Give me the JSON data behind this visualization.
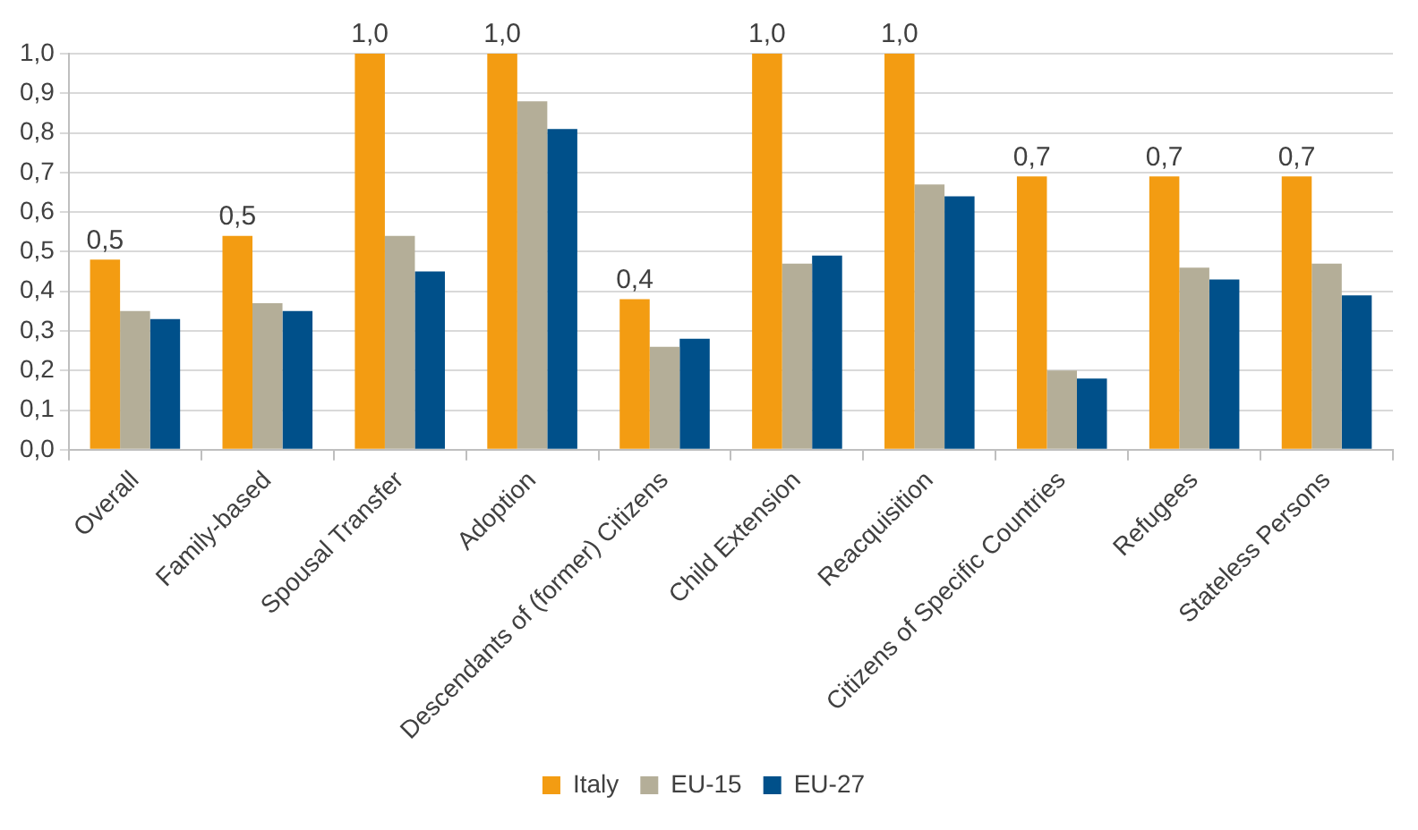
{
  "chart_data": {
    "type": "bar",
    "categories": [
      "Overall",
      "Family-based",
      "Spousal Transfer",
      "Adoption",
      "Descendants of (former) Citizens",
      "Child Extension",
      "Reacquisition",
      "Citizens of Specific Countries",
      "Refugees",
      "Stateless Persons"
    ],
    "series": [
      {
        "name": "Italy",
        "color": "#f39c12",
        "values": [
          0.48,
          0.54,
          1.0,
          1.0,
          0.38,
          1.0,
          1.0,
          0.69,
          0.69,
          0.69
        ],
        "value_labels": [
          "0,5",
          "0,5",
          "1,0",
          "1,0",
          "0,4",
          "1,0",
          "1,0",
          "0,7",
          "0,7",
          "0,7"
        ]
      },
      {
        "name": "EU-15",
        "color": "#b4ae98",
        "values": [
          0.35,
          0.37,
          0.54,
          0.88,
          0.26,
          0.47,
          0.67,
          0.2,
          0.46,
          0.47
        ]
      },
      {
        "name": "EU-27",
        "color": "#00508a",
        "values": [
          0.33,
          0.35,
          0.45,
          0.81,
          0.28,
          0.49,
          0.64,
          0.18,
          0.43,
          0.39
        ]
      }
    ],
    "ylim": [
      0,
      1
    ],
    "yticks": [
      {
        "value": 0,
        "label": "0,0"
      },
      {
        "value": 0.1,
        "label": "0,1"
      },
      {
        "value": 0.2,
        "label": "0,2"
      },
      {
        "value": 0.3,
        "label": "0,3"
      },
      {
        "value": 0.4,
        "label": "0,4"
      },
      {
        "value": 0.5,
        "label": "0,5"
      },
      {
        "value": 0.6,
        "label": "0,6"
      },
      {
        "value": 0.7,
        "label": "0,7"
      },
      {
        "value": 0.8,
        "label": "0,8"
      },
      {
        "value": 0.9,
        "label": "0,9"
      },
      {
        "value": 1,
        "label": "1,0"
      }
    ],
    "grid": "y",
    "legend": "bottom"
  }
}
